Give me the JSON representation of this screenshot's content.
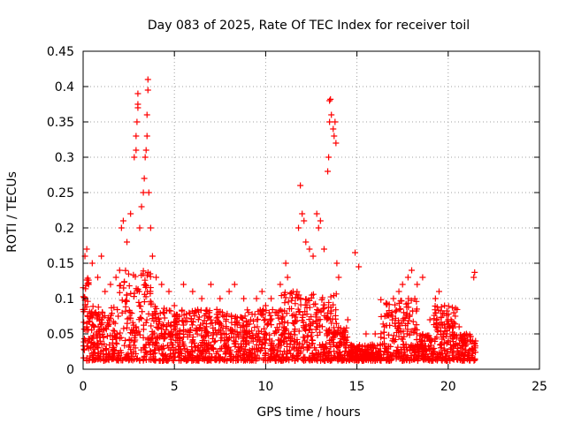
{
  "chart_data": {
    "type": "scatter",
    "title": "Day 083 of 2025, Rate Of TEC Index for receiver toil",
    "xlabel": "GPS time / hours",
    "ylabel": "ROTI / TECUs",
    "xlim": [
      0,
      25
    ],
    "ylim": [
      0,
      0.45
    ],
    "xticks": [
      0,
      5,
      10,
      15,
      20,
      25
    ],
    "xtick_labels": [
      "0",
      "5",
      "10",
      "15",
      "20",
      "25"
    ],
    "yticks": [
      0,
      0.05,
      0.1,
      0.15,
      0.2,
      0.25,
      0.3,
      0.35,
      0.4,
      0.45
    ],
    "ytick_labels": [
      "0",
      "0.05",
      "0.1",
      "0.15",
      "0.2",
      "0.25",
      "0.3",
      "0.35",
      "0.4",
      "0.45"
    ],
    "grid": true,
    "marker": "plus",
    "color": "#ff0000",
    "series": [
      {
        "name": "ROTI",
        "points": [
          [
            0.1,
            0.16
          ],
          [
            0.2,
            0.17
          ],
          [
            0.3,
            0.12
          ],
          [
            0.5,
            0.15
          ],
          [
            0.8,
            0.13
          ],
          [
            1.0,
            0.16
          ],
          [
            1.2,
            0.11
          ],
          [
            1.5,
            0.12
          ],
          [
            1.8,
            0.13
          ],
          [
            2.0,
            0.14
          ],
          [
            2.1,
            0.2
          ],
          [
            2.2,
            0.21
          ],
          [
            2.4,
            0.18
          ],
          [
            2.6,
            0.22
          ],
          [
            2.8,
            0.3
          ],
          [
            2.9,
            0.31
          ],
          [
            2.9,
            0.33
          ],
          [
            2.95,
            0.35
          ],
          [
            3.0,
            0.37
          ],
          [
            3.0,
            0.375
          ],
          [
            3.0,
            0.39
          ],
          [
            3.1,
            0.2
          ],
          [
            3.2,
            0.23
          ],
          [
            3.3,
            0.25
          ],
          [
            3.35,
            0.27
          ],
          [
            3.4,
            0.3
          ],
          [
            3.45,
            0.31
          ],
          [
            3.5,
            0.33
          ],
          [
            3.5,
            0.36
          ],
          [
            3.55,
            0.395
          ],
          [
            3.55,
            0.41
          ],
          [
            3.6,
            0.25
          ],
          [
            3.7,
            0.2
          ],
          [
            3.8,
            0.16
          ],
          [
            4.0,
            0.13
          ],
          [
            4.3,
            0.12
          ],
          [
            4.7,
            0.11
          ],
          [
            5.0,
            0.09
          ],
          [
            5.5,
            0.12
          ],
          [
            6.0,
            0.11
          ],
          [
            6.5,
            0.1
          ],
          [
            7.0,
            0.12
          ],
          [
            7.5,
            0.1
          ],
          [
            8.0,
            0.11
          ],
          [
            8.3,
            0.12
          ],
          [
            8.8,
            0.1
          ],
          [
            9.5,
            0.1
          ],
          [
            9.8,
            0.11
          ],
          [
            10.0,
            0.09
          ],
          [
            10.3,
            0.1
          ],
          [
            10.8,
            0.12
          ],
          [
            11.1,
            0.15
          ],
          [
            11.2,
            0.13
          ],
          [
            11.5,
            0.11
          ],
          [
            11.8,
            0.2
          ],
          [
            11.9,
            0.26
          ],
          [
            12.0,
            0.22
          ],
          [
            12.1,
            0.21
          ],
          [
            12.2,
            0.18
          ],
          [
            12.4,
            0.17
          ],
          [
            12.6,
            0.16
          ],
          [
            12.8,
            0.22
          ],
          [
            12.9,
            0.2
          ],
          [
            13.0,
            0.21
          ],
          [
            13.2,
            0.17
          ],
          [
            13.4,
            0.28
          ],
          [
            13.45,
            0.3
          ],
          [
            13.5,
            0.35
          ],
          [
            13.5,
            0.38
          ],
          [
            13.55,
            0.382
          ],
          [
            13.6,
            0.36
          ],
          [
            13.7,
            0.34
          ],
          [
            13.75,
            0.33
          ],
          [
            13.8,
            0.35
          ],
          [
            13.85,
            0.32
          ],
          [
            13.9,
            0.15
          ],
          [
            14.0,
            0.13
          ],
          [
            14.5,
            0.07
          ],
          [
            14.9,
            0.165
          ],
          [
            15.1,
            0.145
          ],
          [
            15.5,
            0.05
          ],
          [
            16.0,
            0.05
          ],
          [
            16.5,
            0.06
          ],
          [
            17.0,
            0.1
          ],
          [
            17.3,
            0.11
          ],
          [
            17.5,
            0.12
          ],
          [
            17.8,
            0.13
          ],
          [
            18.0,
            0.14
          ],
          [
            18.3,
            0.12
          ],
          [
            18.6,
            0.13
          ],
          [
            19.0,
            0.07
          ],
          [
            19.3,
            0.1
          ],
          [
            19.5,
            0.11
          ],
          [
            19.8,
            0.09
          ],
          [
            20.0,
            0.07
          ],
          [
            20.3,
            0.08
          ],
          [
            20.6,
            0.06
          ],
          [
            21.0,
            0.05
          ],
          [
            21.4,
            0.13
          ],
          [
            21.45,
            0.137
          ],
          [
            21.5,
            0.04
          ]
        ]
      }
    ]
  }
}
